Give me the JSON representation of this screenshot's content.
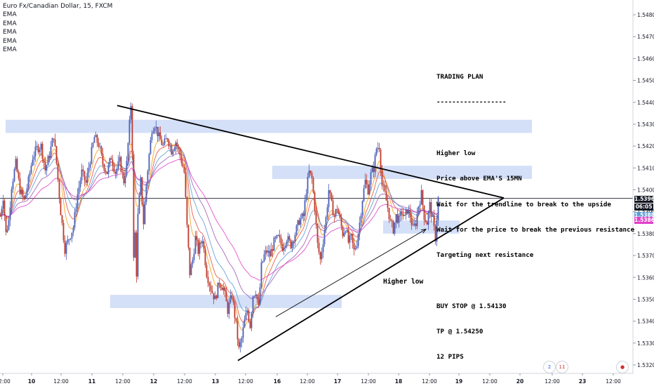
{
  "header": {
    "symbol": "Euro Fx/Canadian Dollar, 15, FXCM",
    "indicators": [
      "EMA",
      "EMA",
      "EMA",
      "EMA",
      "EMA"
    ]
  },
  "trading_plan": {
    "title": "TRADING PLAN",
    "divider": "------------------",
    "lines": [
      "Higher low",
      "Price above EMA'S 15MN",
      "Wait for the trendline to break to the upside",
      "Wait for the price to break the previous resistance",
      "Targeting next resistance"
    ],
    "orders": [
      "BUY STOP @ 1.54130",
      "TP @ 1.54250",
      "12 PIPS"
    ]
  },
  "annotation": {
    "label": "Higher low"
  },
  "price_tags": {
    "last": "1.53961",
    "countdown": "06:05",
    "ema_a": "1.53888",
    "ema_b": "1.53866"
  },
  "events": {
    "count_a": "2",
    "count_b": "11"
  },
  "colors": {
    "candle_up": "#4a5fb8",
    "candle_down": "#c0392b",
    "zone": "#cfdcf7",
    "ema_orange": "#f39c12",
    "ema_red": "#e74c3c",
    "ema_blue": "#5b9bd5",
    "ema_violet": "#9b59b6",
    "ema_magenta": "#e040c8",
    "last_price": "#131722"
  },
  "chart_data": {
    "type": "candlestick",
    "symbol": "EURCAD",
    "timeframe": "15",
    "y_ticks": [
      1.548,
      1.547,
      1.546,
      1.545,
      1.544,
      1.543,
      1.542,
      1.541,
      1.54,
      1.539,
      1.538,
      1.537,
      1.536,
      1.535,
      1.534,
      1.533,
      1.532
    ],
    "y_tick_labels": [
      "1.54800",
      "1.54700",
      "1.54600",
      "1.54500",
      "1.54400",
      "1.54300",
      "1.54200",
      "1.54100",
      "1.54000",
      "1.53900",
      "1.53800",
      "1.53700",
      "1.53600",
      "1.53500",
      "1.53400",
      "1.53300",
      "1.53200"
    ],
    "ylim": [
      1.5317,
      1.5491
    ],
    "x_tick_labels": [
      "12:00",
      "10",
      "12:00",
      "11",
      "12:00",
      "12",
      "12:00",
      "13",
      "12:00",
      "16",
      "12:00",
      "17",
      "12:00",
      "18",
      "12:00",
      "19",
      "12:00",
      "20",
      "12:00",
      "23",
      "12:00"
    ],
    "last_price": 1.53961,
    "close_path": [
      [
        0,
        1.5388
      ],
      [
        4,
        1.5397
      ],
      [
        8,
        1.538
      ],
      [
        12,
        1.5386
      ],
      [
        16,
        1.5402
      ],
      [
        22,
        1.5412
      ],
      [
        28,
        1.54
      ],
      [
        34,
        1.5395
      ],
      [
        40,
        1.5404
      ],
      [
        46,
        1.5415
      ],
      [
        52,
        1.5419
      ],
      [
        58,
        1.542
      ],
      [
        64,
        1.5409
      ],
      [
        70,
        1.5416
      ],
      [
        76,
        1.5425
      ],
      [
        80,
        1.5412
      ],
      [
        86,
        1.539
      ],
      [
        92,
        1.5373
      ],
      [
        98,
        1.5378
      ],
      [
        104,
        1.5383
      ],
      [
        110,
        1.5398
      ],
      [
        116,
        1.5408
      ],
      [
        122,
        1.5403
      ],
      [
        128,
        1.5414
      ],
      [
        134,
        1.5424
      ],
      [
        140,
        1.5421
      ],
      [
        146,
        1.5412
      ],
      [
        152,
        1.5408
      ],
      [
        158,
        1.5415
      ],
      [
        164,
        1.5408
      ],
      [
        170,
        1.5413
      ],
      [
        176,
        1.5404
      ],
      [
        180,
        1.5412
      ],
      [
        184,
        1.543
      ],
      [
        186,
        1.5439
      ],
      [
        188,
        1.5418
      ],
      [
        190,
        1.5368
      ],
      [
        192,
        1.538
      ],
      [
        194,
        1.5362
      ],
      [
        196,
        1.5388
      ],
      [
        200,
        1.5404
      ],
      [
        204,
        1.5385
      ],
      [
        208,
        1.5403
      ],
      [
        212,
        1.5416
      ],
      [
        216,
        1.5428
      ],
      [
        220,
        1.543
      ],
      [
        226,
        1.5424
      ],
      [
        232,
        1.542
      ],
      [
        238,
        1.5424
      ],
      [
        244,
        1.5418
      ],
      [
        250,
        1.5422
      ],
      [
        256,
        1.5416
      ],
      [
        262,
        1.5408
      ],
      [
        266,
        1.5383
      ],
      [
        270,
        1.5362
      ],
      [
        274,
        1.5368
      ],
      [
        278,
        1.5378
      ],
      [
        282,
        1.5372
      ],
      [
        288,
        1.5378
      ],
      [
        294,
        1.5362
      ],
      [
        300,
        1.5355
      ],
      [
        306,
        1.535
      ],
      [
        312,
        1.5358
      ],
      [
        318,
        1.5355
      ],
      [
        324,
        1.5345
      ],
      [
        330,
        1.5352
      ],
      [
        336,
        1.5338
      ],
      [
        340,
        1.5327
      ],
      [
        344,
        1.5332
      ],
      [
        348,
        1.534
      ],
      [
        352,
        1.5345
      ],
      [
        356,
        1.5338
      ],
      [
        360,
        1.5352
      ],
      [
        364,
        1.5354
      ],
      [
        368,
        1.5346
      ],
      [
        372,
        1.5365
      ],
      [
        376,
        1.537
      ],
      [
        380,
        1.5372
      ],
      [
        384,
        1.537
      ],
      [
        390,
        1.5376
      ],
      [
        396,
        1.5378
      ],
      [
        402,
        1.5374
      ],
      [
        408,
        1.5378
      ],
      [
        414,
        1.5375
      ],
      [
        420,
        1.538
      ],
      [
        426,
        1.5386
      ],
      [
        432,
        1.5388
      ],
      [
        436,
        1.54
      ],
      [
        440,
        1.5408
      ],
      [
        444,
        1.5405
      ],
      [
        448,
        1.5392
      ],
      [
        452,
        1.5375
      ],
      [
        456,
        1.5368
      ],
      [
        460,
        1.5377
      ],
      [
        464,
        1.5387
      ],
      [
        468,
        1.54
      ],
      [
        472,
        1.5393
      ],
      [
        476,
        1.5388
      ],
      [
        480,
        1.5392
      ],
      [
        484,
        1.5386
      ],
      [
        488,
        1.538
      ],
      [
        492,
        1.5383
      ],
      [
        496,
        1.5376
      ],
      [
        500,
        1.5378
      ],
      [
        504,
        1.5372
      ],
      [
        508,
        1.5376
      ],
      [
        512,
        1.5385
      ],
      [
        516,
        1.5396
      ],
      [
        520,
        1.5404
      ],
      [
        524,
        1.54
      ],
      [
        528,
        1.5407
      ],
      [
        532,
        1.541
      ],
      [
        536,
        1.5419
      ],
      [
        540,
        1.542
      ],
      [
        544,
        1.5402
      ],
      [
        548,
        1.5398
      ],
      [
        552,
        1.5392
      ],
      [
        556,
        1.5385
      ],
      [
        560,
        1.5382
      ],
      [
        564,
        1.5388
      ],
      [
        568,
        1.5386
      ],
      [
        572,
        1.539
      ],
      [
        576,
        1.5387
      ],
      [
        580,
        1.5391
      ],
      [
        584,
        1.5388
      ],
      [
        588,
        1.5382
      ],
      [
        592,
        1.5385
      ],
      [
        596,
        1.5393
      ],
      [
        600,
        1.5398
      ],
      [
        604,
        1.5388
      ],
      [
        608,
        1.5385
      ],
      [
        612,
        1.5393
      ],
      [
        616,
        1.5386
      ],
      [
        620,
        1.5378
      ],
      [
        624,
        1.5396
      ]
    ],
    "resistance_zones": [
      {
        "x_from": 8,
        "x_to": 758,
        "low": 1.5426,
        "high": 1.5432
      },
      {
        "x_from": 388,
        "x_to": 758,
        "low": 1.5405,
        "high": 1.5411
      },
      {
        "x_from": 546,
        "x_to": 655,
        "low": 1.538,
        "high": 1.5386
      }
    ],
    "support_zones": [
      {
        "x_from": 157,
        "x_to": 487,
        "low": 1.5346,
        "high": 1.5352
      }
    ],
    "trendlines": [
      {
        "from": [
          167,
          1.54385
        ],
        "to": [
          718,
          1.53963
        ],
        "label": "descending resistance"
      },
      {
        "from": [
          339,
          1.5322
        ],
        "to": [
          718,
          1.53963
        ],
        "label": "ascending support"
      }
    ],
    "arrow": {
      "from": [
        393,
        1.5342
      ],
      "to": [
        607,
        1.5382
      ]
    }
  }
}
